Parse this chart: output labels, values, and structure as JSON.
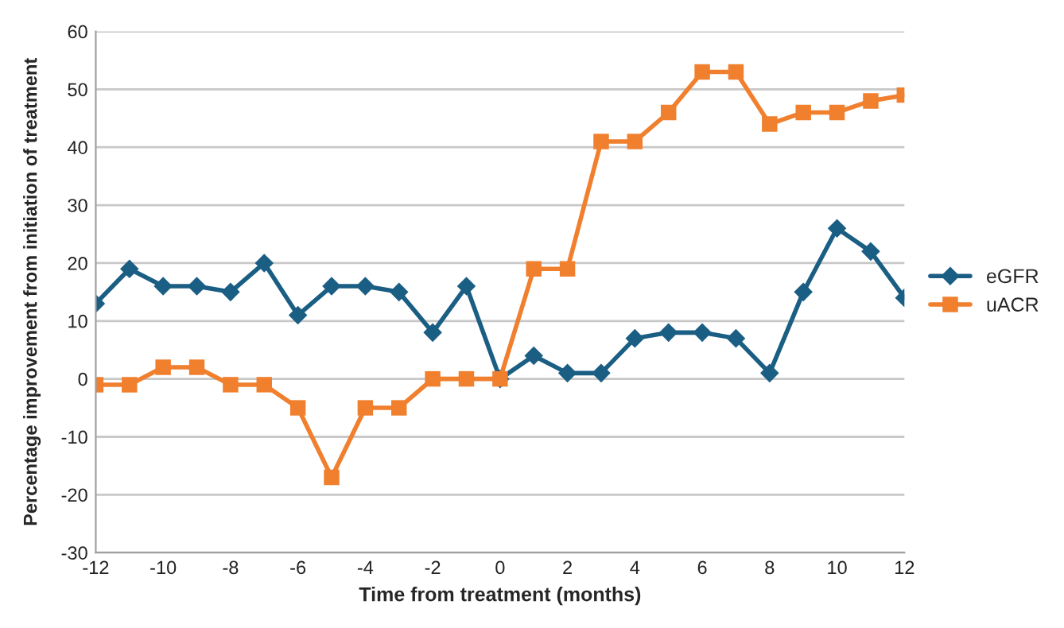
{
  "chart_data": {
    "type": "line",
    "xlabel": "Time from treatment (months)",
    "ylabel": "Percentage improvement from initiation of treatment",
    "x": [
      -12,
      -11,
      -10,
      -9,
      -8,
      -7,
      -6,
      -5,
      -4,
      -3,
      -2,
      -1,
      0,
      1,
      2,
      3,
      4,
      5,
      6,
      7,
      8,
      9,
      10,
      11,
      12
    ],
    "series": [
      {
        "name": "eGFR",
        "color": "#1b5e84",
        "marker": "diamond",
        "values": [
          13,
          19,
          16,
          16,
          15,
          20,
          11,
          16,
          16,
          15,
          8,
          16,
          0,
          4,
          1,
          1,
          7,
          8,
          8,
          7,
          1,
          15,
          26,
          22,
          14
        ]
      },
      {
        "name": "uACR",
        "color": "#f07f2e",
        "marker": "square",
        "values": [
          -1,
          -1,
          2,
          2,
          -1,
          -1,
          -5,
          -17,
          -5,
          -5,
          0,
          0,
          0,
          19,
          19,
          41,
          41,
          46,
          53,
          53,
          44,
          46,
          46,
          48,
          49
        ]
      }
    ],
    "xlim": [
      -12,
      12
    ],
    "xticks": [
      -12,
      -10,
      -8,
      -6,
      -4,
      -2,
      0,
      2,
      4,
      6,
      8,
      10,
      12
    ],
    "ylim": [
      -30,
      60
    ],
    "yticks": [
      -30,
      -20,
      -10,
      0,
      10,
      20,
      30,
      40,
      50,
      60
    ],
    "grid": "y",
    "legend": "right",
    "line_style": "solid"
  }
}
